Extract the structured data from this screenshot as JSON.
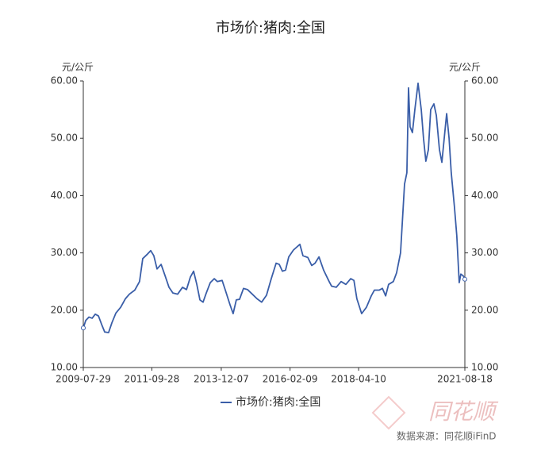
{
  "chart_data": {
    "type": "line",
    "title": "市场价:猪肉:全国",
    "y_label": "元/公斤",
    "y2_label": "元/公斤",
    "source": "数据来源：同花顺iFinD",
    "logo": "同花顺",
    "x": [
      "2009-07-29",
      "2009-08-26",
      "2009-10-02",
      "2009-11-08",
      "2009-12-14",
      "2010-01-20",
      "2010-02-26",
      "2010-04-02",
      "2010-05-17",
      "2010-06-24",
      "2010-08-09",
      "2010-10-03",
      "2010-11-27",
      "2011-01-12",
      "2011-03-15",
      "2011-05-09",
      "2011-06-15",
      "2011-08-09",
      "2011-09-15",
      "2011-10-21",
      "2011-11-27",
      "2012-01-13",
      "2012-02-28",
      "2012-04-13",
      "2012-05-28",
      "2012-07-22",
      "2012-09-16",
      "2012-11-01",
      "2012-12-16",
      "2013-01-22",
      "2013-02-28",
      "2013-04-05",
      "2013-05-11",
      "2013-06-17",
      "2013-08-02",
      "2013-09-17",
      "2013-10-23",
      "2013-12-17",
      "2014-01-23",
      "2014-03-17",
      "2014-04-23",
      "2014-05-30",
      "2014-07-06",
      "2014-08-21",
      "2014-10-06",
      "2014-11-30",
      "2015-01-24",
      "2015-03-18",
      "2015-05-13",
      "2015-07-07",
      "2015-09-01",
      "2015-10-07",
      "2015-11-13",
      "2015-12-19",
      "2016-01-25",
      "2016-03-19",
      "2016-06-01",
      "2016-07-07",
      "2016-09-01",
      "2016-10-16",
      "2016-11-23",
      "2017-01-08",
      "2017-03-02",
      "2017-05-05",
      "2017-06-02",
      "2017-07-26",
      "2017-09-20",
      "2017-11-14",
      "2018-01-09",
      "2018-02-15",
      "2018-03-21",
      "2018-05-15",
      "2018-07-09",
      "2018-09-03",
      "2018-10-09",
      "2018-12-03",
      "2019-01-10",
      "2019-02-16",
      "2019-03-22",
      "2019-05-16",
      "2019-06-22",
      "2019-08-07",
      "2019-09-22",
      "2019-10-19",
      "2019-11-07",
      "2019-11-25",
      "2019-12-22",
      "2020-01-19",
      "2020-02-25",
      "2020-04-02",
      "2020-04-28",
      "2020-05-25",
      "2020-06-23",
      "2020-07-20",
      "2020-08-26",
      "2020-09-23",
      "2020-10-29",
      "2020-11-26",
      "2020-12-23",
      "2021-01-20",
      "2021-02-17",
      "2021-03-14",
      "2021-04-20",
      "2021-05-17",
      "2021-06-14",
      "2021-07-03",
      "2021-07-30",
      "2021-08-18"
    ],
    "series": [
      {
        "name": "市场价:猪肉:全国",
        "color": "#3a5ea8",
        "values": [
          16.9,
          18.2,
          18.8,
          18.6,
          19.3,
          19.0,
          17.5,
          16.2,
          16.1,
          17.8,
          19.5,
          20.5,
          22.0,
          22.8,
          23.5,
          25.0,
          29.0,
          29.8,
          30.4,
          29.5,
          27.2,
          28.0,
          26.0,
          24.0,
          23.0,
          22.8,
          24.0,
          23.6,
          25.8,
          26.8,
          24.5,
          21.8,
          21.4,
          23.0,
          24.8,
          25.5,
          25.0,
          25.2,
          23.5,
          21.0,
          19.4,
          21.8,
          21.9,
          23.8,
          23.6,
          22.8,
          22.0,
          21.4,
          22.6,
          25.5,
          28.2,
          28.0,
          26.8,
          27.0,
          29.3,
          30.5,
          31.5,
          29.5,
          29.2,
          27.8,
          28.2,
          29.3,
          27.0,
          25.0,
          24.2,
          24.0,
          25.0,
          24.5,
          25.5,
          25.2,
          22.0,
          19.4,
          20.5,
          22.5,
          23.5,
          23.5,
          23.8,
          22.5,
          24.5,
          25.0,
          26.5,
          30.0,
          42.0,
          44.0,
          58.8,
          52.0,
          51.0,
          55.0,
          59.6,
          55.0,
          50.0,
          46.0,
          48.0,
          55.0,
          56.0,
          54.0,
          48.0,
          45.8,
          50.0,
          54.3,
          50.0,
          44.0,
          38.0,
          33.0,
          24.8,
          26.3,
          26.0,
          25.4
        ]
      }
    ],
    "xlim": [
      "2009-07-29",
      "2021-08-18"
    ],
    "xticks": [
      "2009-07-29",
      "2011-09-28",
      "2013-12-07",
      "2016-02-09",
      "2018-04-10",
      "2021-08-18"
    ],
    "ylim": [
      10,
      60
    ],
    "yticks": [
      {
        "value": 10,
        "label": "10.00"
      },
      {
        "value": 20,
        "label": "20.00"
      },
      {
        "value": 30,
        "label": "30.00"
      },
      {
        "value": 40,
        "label": "40.00"
      },
      {
        "value": 50,
        "label": "50.00"
      },
      {
        "value": 60,
        "label": "60.00"
      }
    ],
    "y2lim": [
      10,
      60
    ],
    "y2ticks": [
      {
        "value": 10,
        "label": "10.00"
      },
      {
        "value": 20,
        "label": "20.00"
      },
      {
        "value": 30,
        "label": "30.00"
      },
      {
        "value": 40,
        "label": "40.00"
      },
      {
        "value": 50,
        "label": "50.00"
      },
      {
        "value": 60,
        "label": "60.00"
      }
    ],
    "legend": "bottom"
  }
}
